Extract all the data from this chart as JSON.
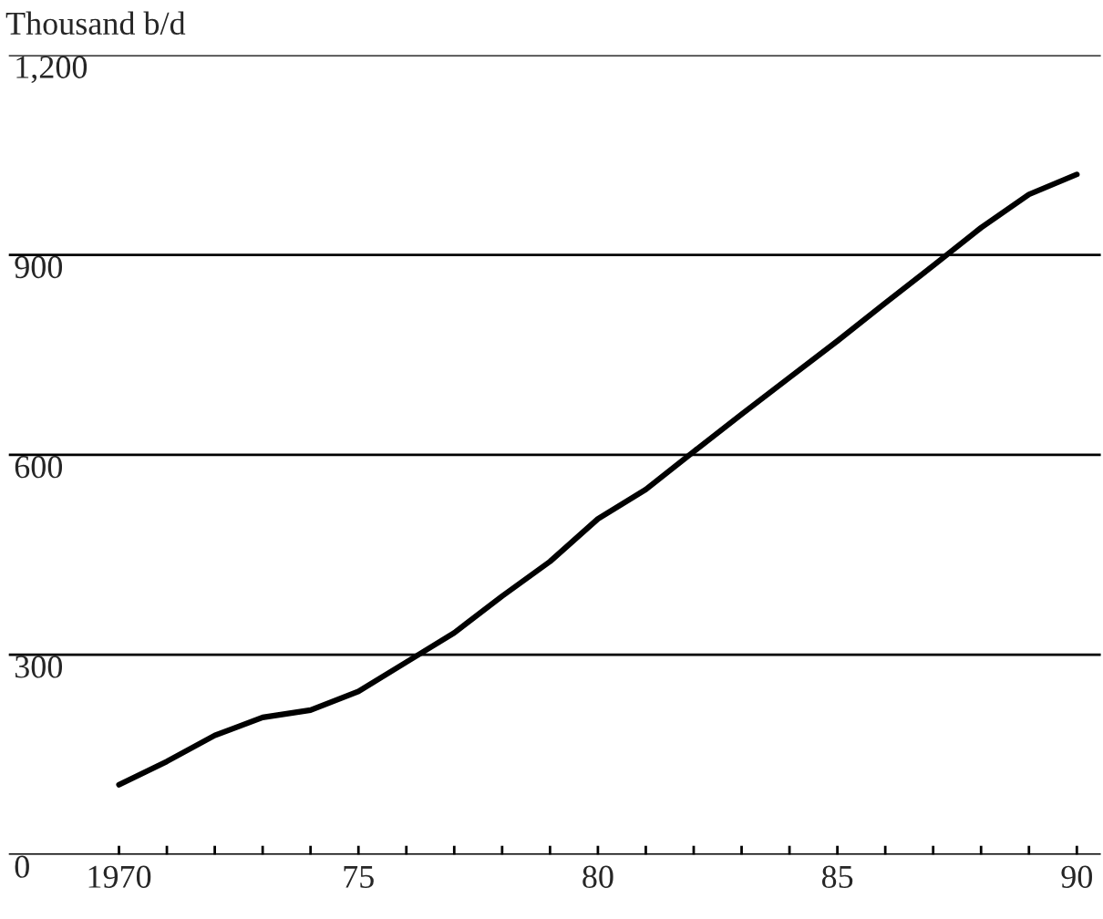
{
  "chart_data": {
    "type": "line",
    "ylabel": "Thousand b/d",
    "x": [
      1970,
      1971,
      1972,
      1973,
      1974,
      1975,
      1976,
      1977,
      1978,
      1979,
      1980,
      1981,
      1982,
      1983,
      1984,
      1985,
      1986,
      1987,
      1988,
      1989,
      1990
    ],
    "series": [
      {
        "color": "#000000",
        "values": [
          105,
          140,
          179,
          206,
          217,
          245,
          289,
          333,
          388,
          440,
          504,
          548,
          605,
          661,
          716,
          771,
          828,
          884,
          941,
          991,
          1021
        ]
      }
    ],
    "xlim": [
      1967.7,
      1990.5
    ],
    "ylim": [
      0,
      1200
    ],
    "xticks": [
      {
        "value": 1970,
        "label": "1970"
      },
      {
        "value": 1971,
        "label": null
      },
      {
        "value": 1972,
        "label": null
      },
      {
        "value": 1973,
        "label": null
      },
      {
        "value": 1974,
        "label": null
      },
      {
        "value": 1975,
        "label": "75"
      },
      {
        "value": 1976,
        "label": null
      },
      {
        "value": 1977,
        "label": null
      },
      {
        "value": 1978,
        "label": null
      },
      {
        "value": 1979,
        "label": null
      },
      {
        "value": 1980,
        "label": "80"
      },
      {
        "value": 1981,
        "label": null
      },
      {
        "value": 1982,
        "label": null
      },
      {
        "value": 1983,
        "label": null
      },
      {
        "value": 1984,
        "label": null
      },
      {
        "value": 1985,
        "label": "85"
      },
      {
        "value": 1986,
        "label": null
      },
      {
        "value": 1987,
        "label": null
      },
      {
        "value": 1988,
        "label": null
      },
      {
        "value": 1989,
        "label": null
      },
      {
        "value": 1990,
        "label": "90"
      }
    ],
    "yticks": [
      0,
      {
        "value": 300,
        "label": "300"
      },
      {
        "value": 600,
        "label": "600"
      },
      {
        "value": 900,
        "label": "900"
      },
      {
        "value": 1200,
        "label": "1,200"
      }
    ],
    "grid": "y",
    "line_style": "solid",
    "marker": "none"
  }
}
